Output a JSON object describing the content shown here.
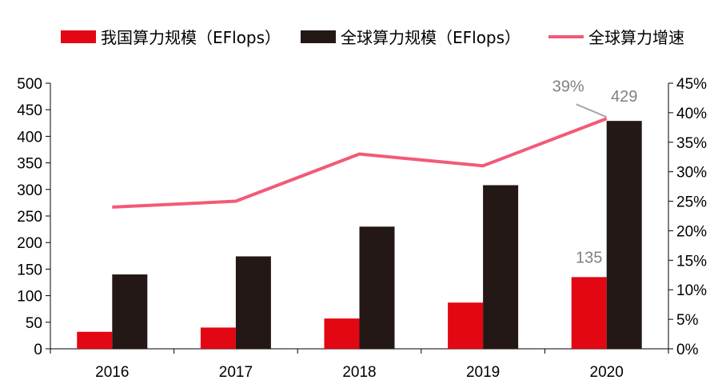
{
  "chart_data": {
    "type": "bar",
    "categories": [
      "2016",
      "2017",
      "2018",
      "2019",
      "2020"
    ],
    "series": [
      {
        "name": "我国算力规模（EFlops）",
        "kind": "bar",
        "axis": "left",
        "color": "#e30613",
        "values": [
          32,
          40,
          57,
          87,
          135
        ]
      },
      {
        "name": "全球算力规模（EFlops）",
        "kind": "bar",
        "axis": "left",
        "color": "#231815",
        "values": [
          140,
          174,
          230,
          308,
          429
        ]
      },
      {
        "name": "全球算力增速",
        "kind": "line",
        "axis": "right",
        "color": "#f25a78",
        "values": [
          0.24,
          0.25,
          0.33,
          0.31,
          0.39
        ]
      }
    ],
    "left_axis": {
      "min": 0,
      "max": 500,
      "ticks": [
        "0",
        "50",
        "100",
        "150",
        "200",
        "250",
        "300",
        "350",
        "400",
        "450",
        "500"
      ]
    },
    "right_axis": {
      "min": 0,
      "max": 0.45,
      "ticks": [
        "0%",
        "5%",
        "10%",
        "15%",
        "20%",
        "25%",
        "30%",
        "35%",
        "40%",
        "45%"
      ]
    },
    "data_labels": [
      {
        "text": "135",
        "series": 0,
        "index": 4
      },
      {
        "text": "429",
        "series": 1,
        "index": 4
      },
      {
        "text": "39%",
        "series": 2,
        "index": 4
      }
    ],
    "legend_position": "top",
    "grid": false
  }
}
